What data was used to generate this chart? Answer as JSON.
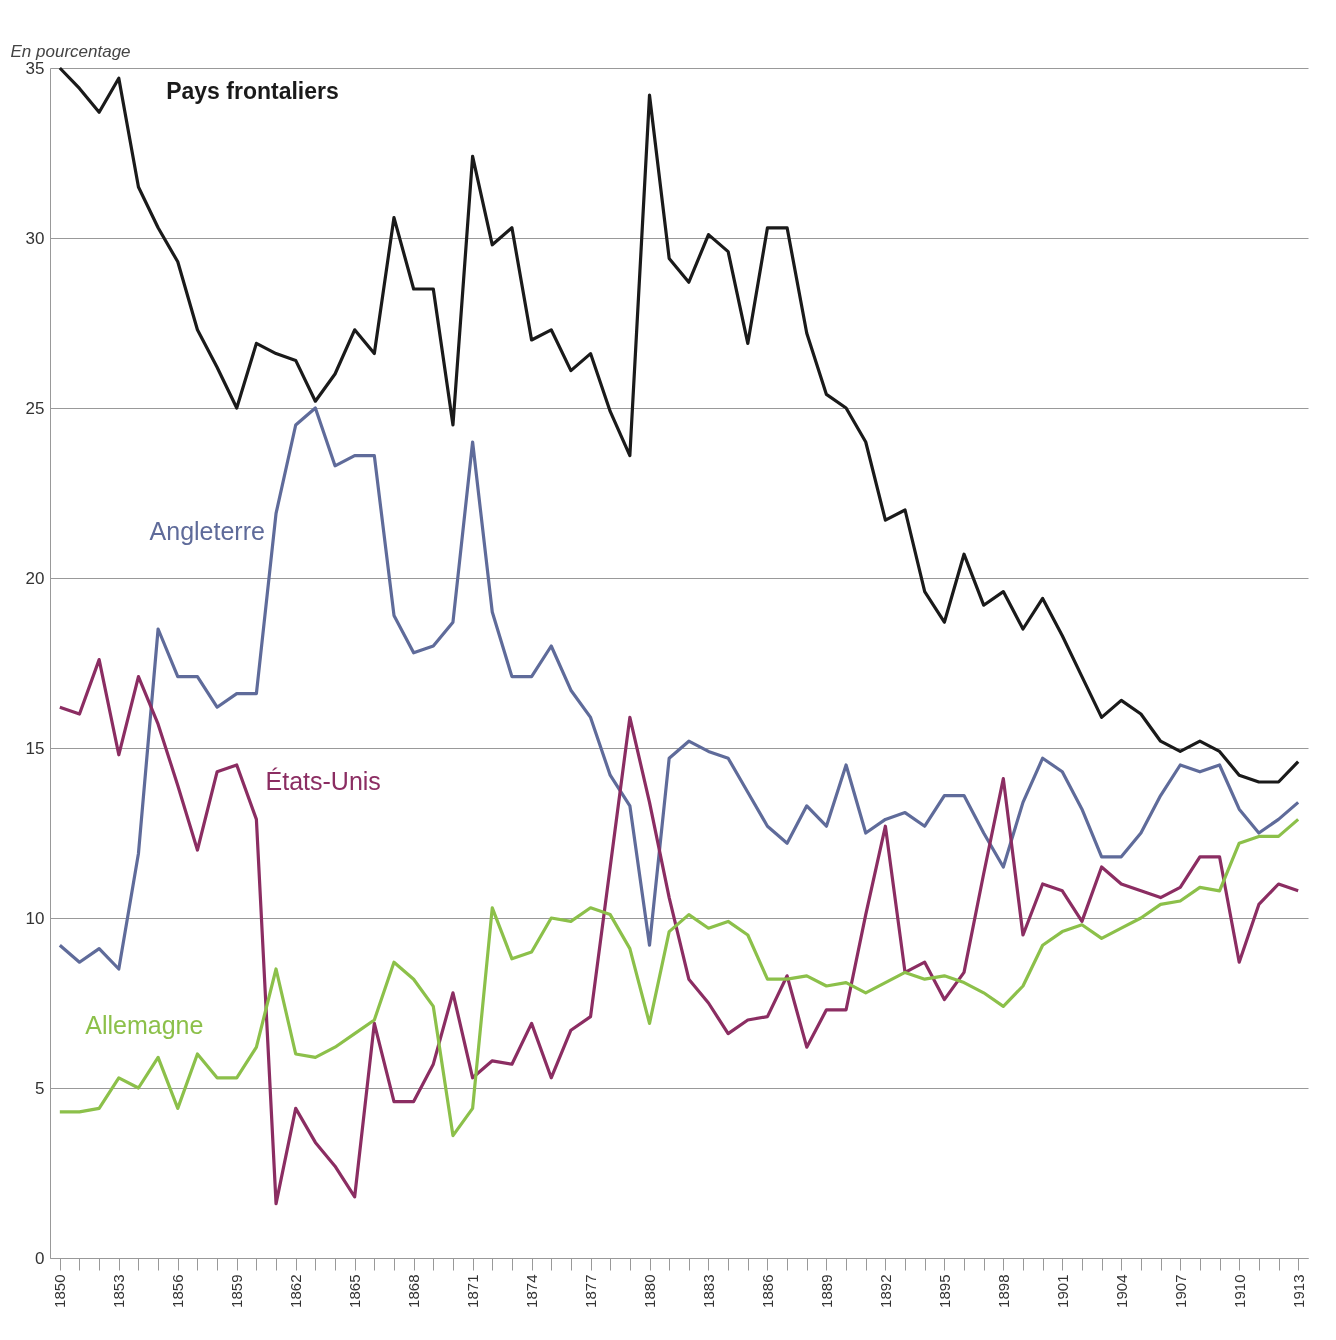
{
  "chart_data": {
    "type": "line",
    "ylabel": "En pourcentage",
    "x": [
      1850,
      1851,
      1852,
      1853,
      1854,
      1855,
      1856,
      1857,
      1858,
      1859,
      1860,
      1861,
      1862,
      1863,
      1864,
      1865,
      1866,
      1867,
      1868,
      1869,
      1870,
      1871,
      1872,
      1873,
      1874,
      1875,
      1876,
      1877,
      1878,
      1879,
      1880,
      1881,
      1882,
      1883,
      1884,
      1885,
      1886,
      1887,
      1888,
      1889,
      1890,
      1891,
      1892,
      1893,
      1894,
      1895,
      1896,
      1897,
      1898,
      1899,
      1900,
      1901,
      1902,
      1903,
      1904,
      1905,
      1906,
      1907,
      1908,
      1909,
      1910,
      1911,
      1912,
      1913
    ],
    "xlim": [
      1849.5,
      1913.5
    ],
    "xticks": [
      1850,
      {
        "value": 1851,
        "label": null
      },
      {
        "value": 1852,
        "label": null
      },
      1853,
      {
        "value": 1854,
        "label": null
      },
      {
        "value": 1855,
        "label": null
      },
      1856,
      {
        "value": 1857,
        "label": null
      },
      {
        "value": 1858,
        "label": null
      },
      1859,
      {
        "value": 1860,
        "label": null
      },
      {
        "value": 1861,
        "label": null
      },
      1862,
      {
        "value": 1863,
        "label": null
      },
      {
        "value": 1864,
        "label": null
      },
      1865,
      {
        "value": 1866,
        "label": null
      },
      {
        "value": 1867,
        "label": null
      },
      1868,
      {
        "value": 1869,
        "label": null
      },
      {
        "value": 1870,
        "label": null
      },
      1871,
      {
        "value": 1872,
        "label": null
      },
      {
        "value": 1873,
        "label": null
      },
      1874,
      {
        "value": 1875,
        "label": null
      },
      {
        "value": 1876,
        "label": null
      },
      1877,
      {
        "value": 1878,
        "label": null
      },
      {
        "value": 1879,
        "label": null
      },
      1880,
      {
        "value": 1881,
        "label": null
      },
      {
        "value": 1882,
        "label": null
      },
      1883,
      {
        "value": 1884,
        "label": null
      },
      {
        "value": 1885,
        "label": null
      },
      1886,
      {
        "value": 1887,
        "label": null
      },
      {
        "value": 1888,
        "label": null
      },
      1889,
      {
        "value": 1890,
        "label": null
      },
      {
        "value": 1891,
        "label": null
      },
      1892,
      {
        "value": 1893,
        "label": null
      },
      {
        "value": 1894,
        "label": null
      },
      1895,
      {
        "value": 1896,
        "label": null
      },
      {
        "value": 1897,
        "label": null
      },
      1898,
      {
        "value": 1899,
        "label": null
      },
      {
        "value": 1900,
        "label": null
      },
      1901,
      {
        "value": 1902,
        "label": null
      },
      {
        "value": 1903,
        "label": null
      },
      1904,
      {
        "value": 1905,
        "label": null
      },
      {
        "value": 1906,
        "label": null
      },
      1907,
      {
        "value": 1908,
        "label": null
      },
      {
        "value": 1909,
        "label": null
      },
      1910,
      {
        "value": 1911,
        "label": null
      },
      {
        "value": 1912,
        "label": null
      },
      1913
    ],
    "ylim": [
      0,
      35
    ],
    "yticks": [
      0,
      5,
      10,
      15,
      20,
      25,
      30,
      35
    ],
    "grid": "y",
    "legend": false,
    "line_style": "solid",
    "series": [
      {
        "name": "Pays frontaliers",
        "color": "#1a1a1a",
        "values": [
          35.0,
          34.4,
          33.7,
          34.7,
          31.5,
          30.3,
          29.3,
          27.3,
          26.2,
          25.0,
          26.9,
          26.6,
          26.4,
          25.2,
          26.0,
          27.3,
          26.6,
          30.6,
          28.5,
          28.5,
          24.5,
          32.4,
          29.8,
          30.3,
          27.0,
          27.3,
          26.1,
          26.6,
          24.9,
          23.6,
          34.2,
          29.4,
          28.7,
          30.1,
          29.6,
          26.9,
          30.3,
          30.3,
          27.2,
          25.4,
          25.0,
          24.0,
          21.7,
          22.0,
          19.6,
          18.7,
          20.7,
          19.2,
          19.6,
          18.5,
          19.4,
          18.3,
          17.1,
          15.9,
          16.4,
          16.0,
          15.2,
          14.9,
          15.2,
          14.9,
          14.2,
          14.0,
          14.0,
          14.6
        ]
      },
      {
        "name": "Angleterre",
        "color": "#5f6b9a",
        "values": [
          9.2,
          8.7,
          9.1,
          8.5,
          11.9,
          18.5,
          17.1,
          17.1,
          16.2,
          16.6,
          16.6,
          21.9,
          24.5,
          25.0,
          23.3,
          23.6,
          23.6,
          18.9,
          17.8,
          18.0,
          18.7,
          24.0,
          19.0,
          17.1,
          17.1,
          18.0,
          16.7,
          15.9,
          14.2,
          13.3,
          9.2,
          14.7,
          15.2,
          14.9,
          14.7,
          13.7,
          12.7,
          12.2,
          13.3,
          12.7,
          14.5,
          12.5,
          12.9,
          13.1,
          12.7,
          13.6,
          13.6,
          12.5,
          11.5,
          13.4,
          14.7,
          14.3,
          13.2,
          11.8,
          11.8,
          12.5,
          13.6,
          14.5,
          14.3,
          14.5,
          13.2,
          12.5,
          12.9,
          13.4
        ]
      },
      {
        "name": "États-Unis",
        "color": "#8b2d62",
        "values": [
          16.2,
          16.0,
          17.6,
          14.8,
          17.1,
          15.7,
          13.9,
          12.0,
          14.3,
          14.5,
          12.9,
          1.6,
          4.4,
          3.4,
          2.7,
          1.8,
          6.9,
          4.6,
          4.6,
          5.7,
          7.8,
          5.3,
          5.8,
          5.7,
          6.9,
          5.3,
          6.7,
          7.1,
          11.5,
          15.9,
          13.4,
          10.6,
          8.2,
          7.5,
          6.6,
          7.0,
          7.1,
          8.3,
          6.2,
          7.3,
          7.3,
          10.1,
          12.7,
          8.4,
          8.7,
          7.6,
          8.4,
          11.3,
          14.1,
          9.5,
          11.0,
          10.8,
          9.9,
          11.5,
          11.0,
          10.8,
          10.6,
          10.9,
          11.8,
          11.8,
          8.7,
          10.4,
          11.0,
          10.8
        ]
      },
      {
        "name": "Allemagne",
        "color": "#8cc04a",
        "values": [
          4.3,
          4.3,
          4.4,
          5.3,
          5.0,
          5.9,
          4.4,
          6.0,
          5.3,
          5.3,
          6.2,
          8.5,
          6.0,
          5.9,
          6.2,
          6.6,
          7.0,
          8.7,
          8.2,
          7.4,
          3.6,
          4.4,
          10.3,
          8.8,
          9.0,
          10.0,
          9.9,
          10.3,
          10.1,
          9.1,
          6.9,
          9.6,
          10.1,
          9.7,
          9.9,
          9.5,
          8.2,
          8.2,
          8.3,
          8.0,
          8.1,
          7.8,
          8.1,
          8.4,
          8.2,
          8.3,
          8.1,
          7.8,
          7.4,
          8.0,
          9.2,
          9.6,
          9.8,
          9.4,
          9.7,
          10.0,
          10.4,
          10.5,
          10.9,
          10.8,
          12.2,
          12.4,
          12.4,
          12.9
        ]
      }
    ]
  }
}
